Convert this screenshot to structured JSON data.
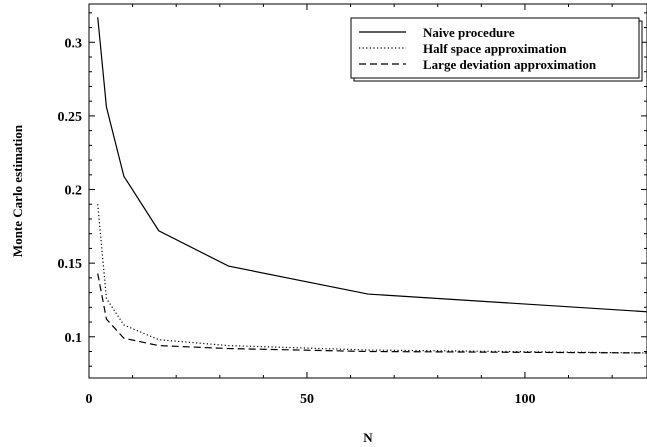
{
  "chart_data": {
    "type": "line",
    "title": "",
    "xlabel": "N",
    "ylabel": "Monte Carlo estimation",
    "xlim": [
      0,
      128
    ],
    "ylim": [
      0.072,
      0.326
    ],
    "xticks": [
      0,
      50,
      100
    ],
    "xtick_labels": [
      "0",
      "50",
      "100"
    ],
    "yticks": [
      0.1,
      0.15,
      0.2,
      0.25,
      0.3
    ],
    "ytick_labels": [
      "0.1",
      "0.15",
      "0.2",
      "0.25",
      "0.3"
    ],
    "grid": false,
    "legend_position": "top-right",
    "series": [
      {
        "name": "Naive procedure",
        "style": "solid",
        "x": [
          2,
          4,
          8,
          16,
          32,
          64,
          128
        ],
        "y": [
          0.317,
          0.256,
          0.209,
          0.172,
          0.148,
          0.129,
          0.117
        ]
      },
      {
        "name": "Half space approximation",
        "style": "dotted",
        "x": [
          2,
          4,
          8,
          16,
          32,
          64,
          128
        ],
        "y": [
          0.19,
          0.126,
          0.108,
          0.098,
          0.094,
          0.091,
          0.089
        ]
      },
      {
        "name": "Large deviation approximation",
        "style": "dashed",
        "x": [
          2,
          4,
          8,
          16,
          32,
          64,
          128
        ],
        "y": [
          0.143,
          0.112,
          0.099,
          0.094,
          0.092,
          0.09,
          0.089
        ]
      }
    ]
  }
}
